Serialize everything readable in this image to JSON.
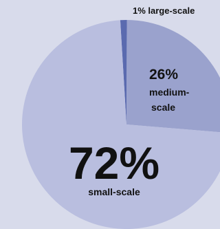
{
  "chart_data": {
    "type": "pie",
    "slices": [
      {
        "key": "large",
        "value": 1,
        "color": "#5a6aaf"
      },
      {
        "key": "medium",
        "value": 26,
        "color": "#9aa2cd"
      },
      {
        "key": "small",
        "value": 72,
        "color": "#b9bedf"
      }
    ],
    "labels": {
      "large": "1% large-scale",
      "medium_pct": "26%",
      "medium_l1": "medium-",
      "medium_l2": "scale",
      "small_pct": "72%",
      "small_name": "small-scale"
    }
  }
}
